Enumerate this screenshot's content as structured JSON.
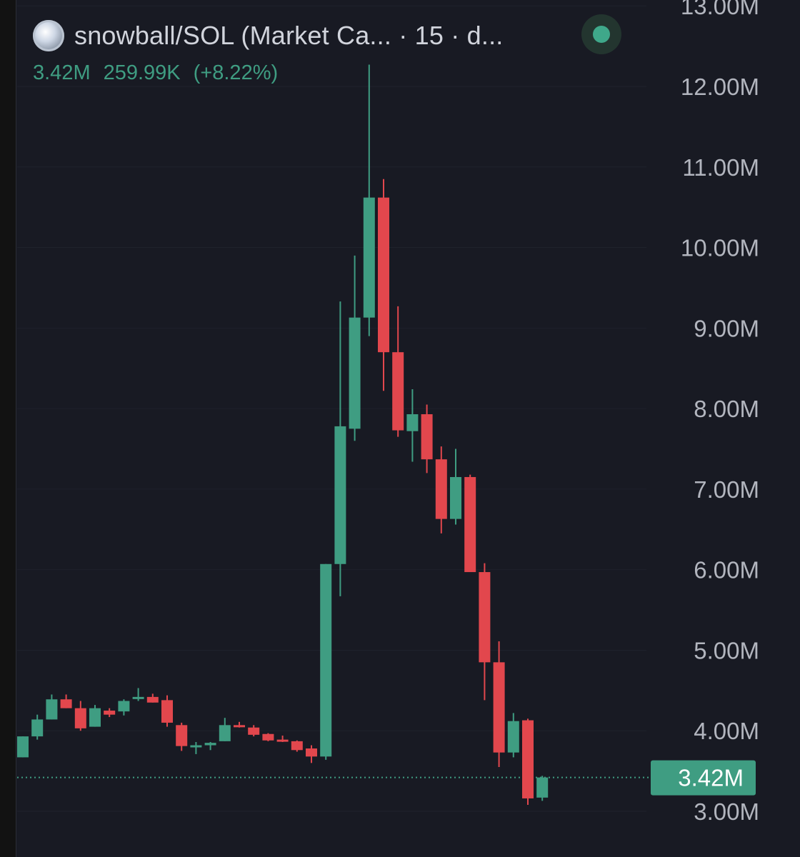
{
  "header": {
    "title": "snowball/SOL (Market Ca...  · 15 · d...",
    "status_color": "#3fa88a"
  },
  "subheader": {
    "value": "3.42M",
    "change": "259.99K",
    "change_pct": "(+8.22%)"
  },
  "colors": {
    "up": "#3f9d82",
    "down": "#e2474d",
    "background": "#181a23",
    "axis_text": "#b2b5be"
  },
  "chart_data": {
    "type": "candlestick",
    "interval": "15",
    "ylim": [
      2.8,
      13.0
    ],
    "y_tick_labels": [
      "3.00M",
      "4.00M",
      "5.00M",
      "6.00M",
      "7.00M",
      "8.00M",
      "9.00M",
      "10.00M",
      "11.00M",
      "12.00M",
      "13.00M"
    ],
    "y_tick_values": [
      3,
      4,
      5,
      6,
      7,
      8,
      9,
      10,
      11,
      12,
      13
    ],
    "last_price": 3.42,
    "last_price_label": "3.42M",
    "candles": [
      {
        "o": 3.67,
        "h": 3.93,
        "l": 3.67,
        "c": 3.93
      },
      {
        "o": 3.93,
        "h": 4.2,
        "l": 3.89,
        "c": 4.14
      },
      {
        "o": 4.14,
        "h": 4.45,
        "l": 4.14,
        "c": 4.39
      },
      {
        "o": 4.39,
        "h": 4.45,
        "l": 4.28,
        "c": 4.28
      },
      {
        "o": 4.28,
        "h": 4.37,
        "l": 4.0,
        "c": 4.03
      },
      {
        "o": 4.05,
        "h": 4.32,
        "l": 4.05,
        "c": 4.28
      },
      {
        "o": 4.25,
        "h": 4.28,
        "l": 4.17,
        "c": 4.2
      },
      {
        "o": 4.24,
        "h": 4.39,
        "l": 4.19,
        "c": 4.37
      },
      {
        "o": 4.41,
        "h": 4.53,
        "l": 4.37,
        "c": 4.42
      },
      {
        "o": 4.42,
        "h": 4.46,
        "l": 4.35,
        "c": 4.35
      },
      {
        "o": 4.38,
        "h": 4.44,
        "l": 4.05,
        "c": 4.1
      },
      {
        "o": 4.07,
        "h": 4.1,
        "l": 3.75,
        "c": 3.81
      },
      {
        "o": 3.8,
        "h": 3.86,
        "l": 3.71,
        "c": 3.82
      },
      {
        "o": 3.82,
        "h": 3.86,
        "l": 3.76,
        "c": 3.85
      },
      {
        "o": 3.87,
        "h": 4.16,
        "l": 3.87,
        "c": 4.07
      },
      {
        "o": 4.07,
        "h": 4.11,
        "l": 4.04,
        "c": 4.05
      },
      {
        "o": 4.04,
        "h": 4.07,
        "l": 3.93,
        "c": 3.95
      },
      {
        "o": 3.96,
        "h": 3.97,
        "l": 3.87,
        "c": 3.88
      },
      {
        "o": 3.89,
        "h": 3.94,
        "l": 3.86,
        "c": 3.87
      },
      {
        "o": 3.87,
        "h": 3.88,
        "l": 3.74,
        "c": 3.76
      },
      {
        "o": 3.78,
        "h": 3.82,
        "l": 3.6,
        "c": 3.68
      },
      {
        "o": 3.68,
        "h": 6.07,
        "l": 3.64,
        "c": 6.07
      },
      {
        "o": 6.07,
        "h": 9.33,
        "l": 5.67,
        "c": 7.78
      },
      {
        "o": 7.75,
        "h": 9.9,
        "l": 7.6,
        "c": 9.13
      },
      {
        "o": 9.13,
        "h": 12.27,
        "l": 8.9,
        "c": 10.62
      },
      {
        "o": 10.62,
        "h": 10.85,
        "l": 8.22,
        "c": 8.7
      },
      {
        "o": 8.7,
        "h": 9.27,
        "l": 7.65,
        "c": 7.73
      },
      {
        "o": 7.72,
        "h": 8.24,
        "l": 7.34,
        "c": 7.93
      },
      {
        "o": 7.93,
        "h": 8.05,
        "l": 7.2,
        "c": 7.37
      },
      {
        "o": 7.37,
        "h": 7.53,
        "l": 6.45,
        "c": 6.63
      },
      {
        "o": 6.63,
        "h": 7.5,
        "l": 6.56,
        "c": 7.15
      },
      {
        "o": 7.15,
        "h": 7.18,
        "l": 5.97,
        "c": 5.97
      },
      {
        "o": 5.97,
        "h": 6.08,
        "l": 4.38,
        "c": 4.85
      },
      {
        "o": 4.85,
        "h": 5.11,
        "l": 3.55,
        "c": 3.73
      },
      {
        "o": 3.73,
        "h": 4.22,
        "l": 3.67,
        "c": 4.12
      },
      {
        "o": 4.13,
        "h": 4.15,
        "l": 3.08,
        "c": 3.16
      },
      {
        "o": 3.17,
        "h": 3.44,
        "l": 3.13,
        "c": 3.42
      }
    ]
  }
}
